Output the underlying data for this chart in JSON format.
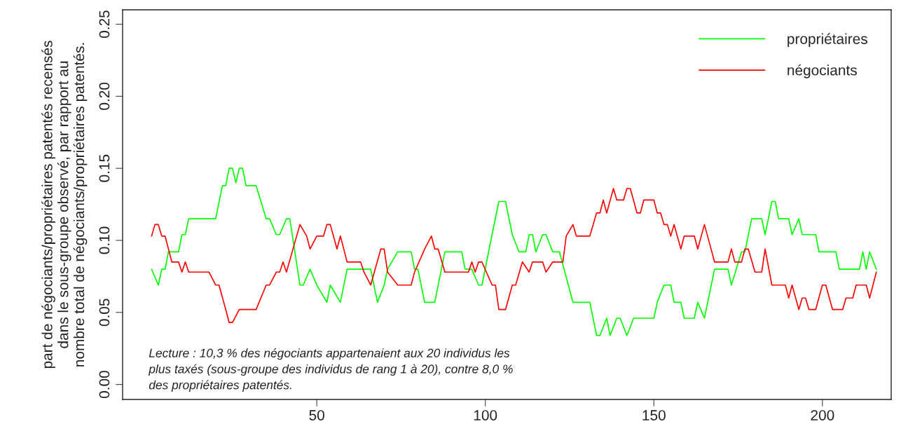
{
  "chart_data": {
    "type": "line",
    "ylabel": "part de négociants/propriétaires patentés recensés\ndans le sous-groupe observé, par rapport au\nnombre total de négociants/propriétaires patentés.",
    "xlim": [
      -7.6,
      220.4
    ],
    "ylim": [
      -0.0104,
      0.26
    ],
    "xticks": [
      50,
      100,
      150,
      200
    ],
    "yticks": [
      {
        "value": 0,
        "label": "0.00"
      },
      {
        "value": 0.05,
        "label": "0.05"
      },
      {
        "value": 0.1,
        "label": "0.10"
      },
      {
        "value": 0.15,
        "label": "0.15"
      },
      {
        "value": 0.2,
        "label": "0.20"
      },
      {
        "value": 0.25,
        "label": "0.25"
      }
    ],
    "grid": false,
    "legend": "top right",
    "marker": "none",
    "line_style": "solid",
    "annotations": [
      "Lecture : 10,3 % des négociants appartenaient aux 20 individus les\nplus taxés (sous-groupe des individus de rang 1 à 20), contre 8,0 %\ndes propriétaires patentés."
    ],
    "series": [
      {
        "name": "propriétaires",
        "color": "#00ff00",
        "x": [
          1,
          3,
          4,
          5,
          6,
          9,
          10,
          11,
          12,
          20,
          22,
          23,
          24,
          25,
          26,
          27,
          28,
          29,
          30,
          32,
          35,
          36,
          38,
          39,
          41,
          42,
          45,
          46,
          48,
          50,
          53,
          54,
          57,
          59,
          66,
          68,
          70,
          71,
          74,
          78,
          79,
          80,
          82,
          85,
          88,
          93,
          94,
          96,
          98,
          99,
          102,
          104,
          105,
          106,
          108,
          110,
          112,
          113,
          114,
          115,
          117,
          118,
          120,
          122,
          126,
          131,
          133,
          134,
          136,
          137,
          139,
          140,
          142,
          144,
          150,
          151,
          153,
          155,
          156,
          158,
          159,
          162,
          163,
          165,
          168,
          172,
          173,
          176,
          177,
          179,
          182,
          183,
          185,
          186,
          187,
          190,
          191,
          193,
          194,
          198,
          199,
          204,
          205,
          211,
          212,
          213,
          214,
          216
        ],
        "values": [
          0.08,
          0.069,
          0.08,
          0.08,
          0.092,
          0.092,
          0.104,
          0.104,
          0.115,
          0.115,
          0.138,
          0.138,
          0.15,
          0.15,
          0.14,
          0.15,
          0.15,
          0.138,
          0.138,
          0.138,
          0.115,
          0.115,
          0.104,
          0.104,
          0.115,
          0.115,
          0.069,
          0.069,
          0.08,
          0.069,
          0.057,
          0.069,
          0.057,
          0.08,
          0.08,
          0.057,
          0.069,
          0.08,
          0.092,
          0.092,
          0.08,
          0.08,
          0.057,
          0.057,
          0.092,
          0.092,
          0.08,
          0.08,
          0.069,
          0.069,
          0.104,
          0.127,
          0.127,
          0.127,
          0.104,
          0.092,
          0.092,
          0.104,
          0.104,
          0.092,
          0.104,
          0.104,
          0.092,
          0.092,
          0.057,
          0.057,
          0.034,
          0.034,
          0.046,
          0.034,
          0.046,
          0.046,
          0.034,
          0.046,
          0.046,
          0.057,
          0.069,
          0.069,
          0.057,
          0.057,
          0.046,
          0.046,
          0.057,
          0.046,
          0.08,
          0.08,
          0.069,
          0.092,
          0.092,
          0.115,
          0.115,
          0.104,
          0.127,
          0.127,
          0.115,
          0.115,
          0.104,
          0.115,
          0.104,
          0.104,
          0.092,
          0.092,
          0.08,
          0.08,
          0.092,
          0.08,
          0.092,
          0.08
        ]
      },
      {
        "name": "négociants",
        "color": "#ff0000",
        "x": [
          1,
          2,
          3,
          4,
          5,
          6,
          7,
          9,
          10,
          11,
          12,
          18,
          20,
          21,
          23,
          24,
          25,
          27,
          32,
          35,
          36,
          38,
          39,
          40,
          41,
          45,
          47,
          48,
          50,
          52,
          53,
          54,
          56,
          57,
          59,
          63,
          64,
          66,
          69,
          70,
          71,
          74,
          78,
          79,
          82,
          84,
          85,
          86,
          88,
          95,
          96,
          97,
          98,
          99,
          102,
          103,
          104,
          106,
          108,
          109,
          111,
          113,
          114,
          117,
          118,
          120,
          123,
          124,
          126,
          127,
          131,
          133,
          134,
          135,
          136,
          138,
          139,
          141,
          142,
          143,
          145,
          146,
          147,
          150,
          151,
          152,
          153,
          154,
          155,
          156,
          158,
          159,
          162,
          163,
          165,
          168,
          172,
          173,
          174,
          176,
          177,
          178,
          180,
          182,
          183,
          185,
          189,
          190,
          191,
          193,
          194,
          195,
          196,
          198,
          200,
          201,
          203,
          206,
          207,
          209,
          210,
          213,
          214,
          216
        ],
        "values": [
          0.103,
          0.111,
          0.111,
          0.103,
          0.103,
          0.094,
          0.085,
          0.085,
          0.078,
          0.085,
          0.078,
          0.078,
          0.069,
          0.069,
          0.052,
          0.043,
          0.043,
          0.052,
          0.052,
          0.069,
          0.069,
          0.078,
          0.078,
          0.085,
          0.078,
          0.111,
          0.103,
          0.094,
          0.103,
          0.103,
          0.111,
          0.111,
          0.094,
          0.103,
          0.085,
          0.085,
          0.078,
          0.069,
          0.094,
          0.094,
          0.078,
          0.069,
          0.069,
          0.078,
          0.094,
          0.103,
          0.094,
          0.094,
          0.078,
          0.078,
          0.085,
          0.078,
          0.085,
          0.085,
          0.069,
          0.069,
          0.052,
          0.052,
          0.069,
          0.069,
          0.085,
          0.078,
          0.085,
          0.085,
          0.078,
          0.085,
          0.085,
          0.103,
          0.111,
          0.103,
          0.103,
          0.119,
          0.119,
          0.128,
          0.119,
          0.136,
          0.128,
          0.128,
          0.136,
          0.136,
          0.119,
          0.119,
          0.128,
          0.128,
          0.119,
          0.119,
          0.111,
          0.111,
          0.103,
          0.111,
          0.094,
          0.103,
          0.103,
          0.094,
          0.111,
          0.085,
          0.085,
          0.094,
          0.085,
          0.085,
          0.094,
          0.094,
          0.078,
          0.078,
          0.094,
          0.069,
          0.069,
          0.06,
          0.069,
          0.052,
          0.06,
          0.06,
          0.052,
          0.052,
          0.069,
          0.069,
          0.052,
          0.052,
          0.06,
          0.06,
          0.069,
          0.069,
          0.06,
          0.078
        ]
      }
    ]
  }
}
